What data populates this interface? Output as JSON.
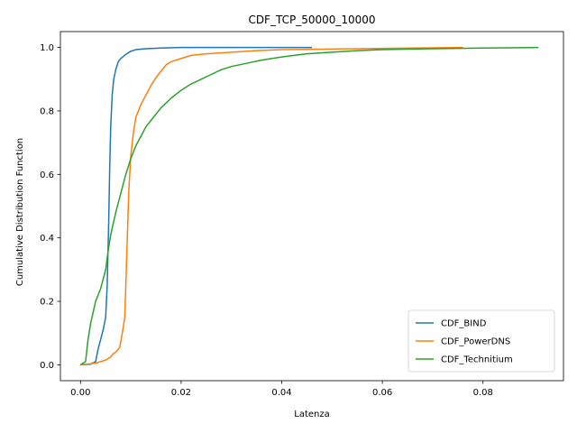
{
  "chart_data": {
    "type": "line",
    "title": "CDF_TCP_50000_10000",
    "xlabel": "Latenza",
    "ylabel": "Cumulative Distribution Function",
    "xlim": [
      -0.004,
      0.096
    ],
    "ylim": [
      -0.05,
      1.05
    ],
    "xticks": [
      0.0,
      0.02,
      0.04,
      0.06,
      0.08
    ],
    "xtick_labels": [
      "0.00",
      "0.02",
      "0.04",
      "0.06",
      "0.08"
    ],
    "yticks": [
      0.0,
      0.2,
      0.4,
      0.6,
      0.8,
      1.0
    ],
    "ytick_labels": [
      "0.0",
      "0.2",
      "0.4",
      "0.6",
      "0.8",
      "1.0"
    ],
    "grid": false,
    "legend": "lower-right",
    "series": [
      {
        "name": "CDF_BIND",
        "color": "#1f77b4",
        "points": [
          [
            0.0,
            0.0
          ],
          [
            0.002,
            0.002
          ],
          [
            0.003,
            0.01
          ],
          [
            0.0035,
            0.05
          ],
          [
            0.004,
            0.08
          ],
          [
            0.0045,
            0.11
          ],
          [
            0.005,
            0.15
          ],
          [
            0.0053,
            0.25
          ],
          [
            0.0056,
            0.45
          ],
          [
            0.0058,
            0.62
          ],
          [
            0.006,
            0.75
          ],
          [
            0.0063,
            0.85
          ],
          [
            0.0066,
            0.9
          ],
          [
            0.007,
            0.93
          ],
          [
            0.0075,
            0.955
          ],
          [
            0.008,
            0.965
          ],
          [
            0.009,
            0.978
          ],
          [
            0.01,
            0.988
          ],
          [
            0.011,
            0.993
          ],
          [
            0.013,
            0.996
          ],
          [
            0.016,
            0.998
          ],
          [
            0.02,
            1.0
          ],
          [
            0.03,
            1.0
          ],
          [
            0.046,
            1.0
          ]
        ]
      },
      {
        "name": "CDF_PowerDNS",
        "color": "#ff7f0e",
        "points": [
          [
            0.0,
            0.0
          ],
          [
            0.003,
            0.005
          ],
          [
            0.005,
            0.015
          ],
          [
            0.006,
            0.025
          ],
          [
            0.0065,
            0.035
          ],
          [
            0.007,
            0.04
          ],
          [
            0.0078,
            0.055
          ],
          [
            0.0083,
            0.1
          ],
          [
            0.0088,
            0.15
          ],
          [
            0.009,
            0.25
          ],
          [
            0.0093,
            0.4
          ],
          [
            0.0096,
            0.55
          ],
          [
            0.01,
            0.66
          ],
          [
            0.0105,
            0.73
          ],
          [
            0.011,
            0.78
          ],
          [
            0.012,
            0.82
          ],
          [
            0.013,
            0.85
          ],
          [
            0.014,
            0.88
          ],
          [
            0.015,
            0.905
          ],
          [
            0.016,
            0.925
          ],
          [
            0.017,
            0.945
          ],
          [
            0.018,
            0.955
          ],
          [
            0.02,
            0.965
          ],
          [
            0.022,
            0.975
          ],
          [
            0.025,
            0.98
          ],
          [
            0.03,
            0.985
          ],
          [
            0.035,
            0.99
          ],
          [
            0.04,
            0.993
          ],
          [
            0.05,
            0.995
          ],
          [
            0.06,
            0.997
          ],
          [
            0.07,
            0.999
          ],
          [
            0.076,
            1.0
          ]
        ]
      },
      {
        "name": "CDF_Technitium",
        "color": "#2ca02c",
        "points": [
          [
            0.0,
            0.0
          ],
          [
            0.001,
            0.01
          ],
          [
            0.0015,
            0.08
          ],
          [
            0.002,
            0.13
          ],
          [
            0.003,
            0.2
          ],
          [
            0.004,
            0.24
          ],
          [
            0.0045,
            0.27
          ],
          [
            0.005,
            0.3
          ],
          [
            0.0055,
            0.36
          ],
          [
            0.006,
            0.41
          ],
          [
            0.007,
            0.48
          ],
          [
            0.008,
            0.54
          ],
          [
            0.009,
            0.6
          ],
          [
            0.01,
            0.65
          ],
          [
            0.011,
            0.69
          ],
          [
            0.012,
            0.72
          ],
          [
            0.013,
            0.75
          ],
          [
            0.014,
            0.77
          ],
          [
            0.015,
            0.79
          ],
          [
            0.016,
            0.81
          ],
          [
            0.017,
            0.825
          ],
          [
            0.018,
            0.84
          ],
          [
            0.02,
            0.865
          ],
          [
            0.022,
            0.885
          ],
          [
            0.024,
            0.9
          ],
          [
            0.026,
            0.915
          ],
          [
            0.028,
            0.93
          ],
          [
            0.03,
            0.94
          ],
          [
            0.033,
            0.95
          ],
          [
            0.036,
            0.96
          ],
          [
            0.04,
            0.97
          ],
          [
            0.045,
            0.98
          ],
          [
            0.05,
            0.985
          ],
          [
            0.055,
            0.99
          ],
          [
            0.06,
            0.993
          ],
          [
            0.07,
            0.996
          ],
          [
            0.08,
            0.998
          ],
          [
            0.085,
            0.999
          ],
          [
            0.091,
            1.0
          ]
        ]
      }
    ]
  }
}
